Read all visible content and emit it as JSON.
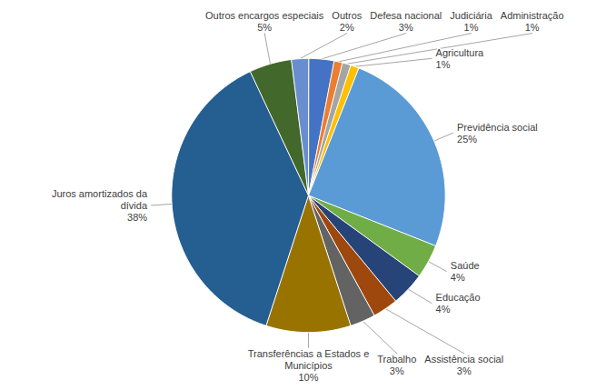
{
  "chart_data": {
    "type": "pie",
    "categories": [
      "Defesa nacional",
      "Judiciária",
      "Administração",
      "Agricultura",
      "Previdência social",
      "Saúde",
      "Educação",
      "Assistência social",
      "Trabalho",
      "Transferências a Estados e Municípios",
      "Juros amortizados da dívida",
      "Outros encargos especiais",
      "Outros"
    ],
    "values": [
      3,
      1,
      1,
      1,
      25,
      4,
      4,
      3,
      3,
      10,
      38,
      5,
      2
    ],
    "value_labels": [
      "3%",
      "1%",
      "1%",
      "1%",
      "25%",
      "4%",
      "4%",
      "3%",
      "3%",
      "10%",
      "38%",
      "5%",
      "2%"
    ],
    "colors": [
      "#4472c4",
      "#ed7d31",
      "#a5a5a5",
      "#ffc000",
      "#5b9bd5",
      "#70ad47",
      "#264478",
      "#9e480e",
      "#636363",
      "#997300",
      "#255e91",
      "#43682b",
      "#698ed0"
    ],
    "data_labels": true
  }
}
